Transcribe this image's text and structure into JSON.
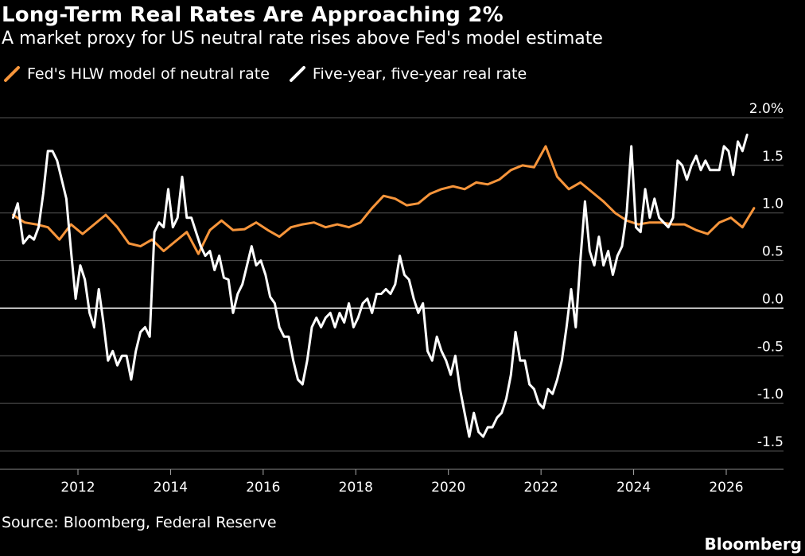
{
  "title": "Long-Term Real Rates Are Approaching 2%",
  "subtitle": "A market proxy for US neutral rate rises above Fed's model estimate",
  "source": "Source: Bloomberg, Federal Reserve",
  "brand": "Bloomberg",
  "colors": {
    "hlw": "#f7953b",
    "real_rate": "#ffffff",
    "grid": "#555555",
    "zero": "#ffffff"
  },
  "chart_data": {
    "type": "line",
    "xlabel": "",
    "ylabel": "",
    "xlim": [
      2010.6,
      2026.9
    ],
    "ylim": [
      -1.6,
      2.0
    ],
    "x_ticks": [
      {
        "value": 2012,
        "label": "2012"
      },
      {
        "value": 2014,
        "label": "2014"
      },
      {
        "value": 2016,
        "label": "2016"
      },
      {
        "value": 2018,
        "label": "2018"
      },
      {
        "value": 2020,
        "label": "2020"
      },
      {
        "value": 2022,
        "label": "2022"
      },
      {
        "value": 2024,
        "label": "2024"
      },
      {
        "value": 2026,
        "label": "2026"
      }
    ],
    "y_ticks": [
      {
        "value": 2.0,
        "label": "2.0%"
      },
      {
        "value": 1.5,
        "label": "1.5"
      },
      {
        "value": 1.0,
        "label": "1.0"
      },
      {
        "value": 0.5,
        "label": "0.5"
      },
      {
        "value": 0.0,
        "label": "0.0"
      },
      {
        "value": -0.5,
        "label": "-0.5"
      },
      {
        "value": -1.0,
        "label": "-1.0"
      },
      {
        "value": -1.5,
        "label": "-1.5"
      }
    ],
    "grid": true,
    "legend_position": "top-left",
    "series": [
      {
        "name": "Fed's HLW model of neutral rate",
        "color": "#f7953b",
        "points": [
          [
            2010.6,
            0.98
          ],
          [
            2010.85,
            0.9
          ],
          [
            2011.1,
            0.88
          ],
          [
            2011.35,
            0.85
          ],
          [
            2011.6,
            0.72
          ],
          [
            2011.85,
            0.88
          ],
          [
            2012.1,
            0.78
          ],
          [
            2012.35,
            0.88
          ],
          [
            2012.6,
            0.98
          ],
          [
            2012.85,
            0.85
          ],
          [
            2013.1,
            0.68
          ],
          [
            2013.35,
            0.65
          ],
          [
            2013.6,
            0.72
          ],
          [
            2013.85,
            0.6
          ],
          [
            2014.1,
            0.7
          ],
          [
            2014.35,
            0.8
          ],
          [
            2014.6,
            0.57
          ],
          [
            2014.85,
            0.82
          ],
          [
            2015.1,
            0.92
          ],
          [
            2015.35,
            0.82
          ],
          [
            2015.6,
            0.83
          ],
          [
            2015.85,
            0.9
          ],
          [
            2016.1,
            0.82
          ],
          [
            2016.35,
            0.75
          ],
          [
            2016.6,
            0.85
          ],
          [
            2016.85,
            0.88
          ],
          [
            2017.1,
            0.9
          ],
          [
            2017.35,
            0.85
          ],
          [
            2017.6,
            0.88
          ],
          [
            2017.85,
            0.85
          ],
          [
            2018.1,
            0.9
          ],
          [
            2018.35,
            1.05
          ],
          [
            2018.6,
            1.18
          ],
          [
            2018.85,
            1.15
          ],
          [
            2019.1,
            1.08
          ],
          [
            2019.35,
            1.1
          ],
          [
            2019.6,
            1.2
          ],
          [
            2019.85,
            1.25
          ],
          [
            2020.1,
            1.28
          ],
          [
            2020.35,
            1.25
          ],
          [
            2020.6,
            1.32
          ],
          [
            2020.85,
            1.3
          ],
          [
            2021.1,
            1.35
          ],
          [
            2021.35,
            1.45
          ],
          [
            2021.6,
            1.5
          ],
          [
            2021.85,
            1.48
          ],
          [
            2022.1,
            1.7
          ],
          [
            2022.35,
            1.38
          ],
          [
            2022.6,
            1.25
          ],
          [
            2022.85,
            1.32
          ],
          [
            2023.1,
            1.22
          ],
          [
            2023.35,
            1.12
          ],
          [
            2023.6,
            1.0
          ],
          [
            2023.85,
            0.92
          ],
          [
            2024.1,
            0.88
          ],
          [
            2024.35,
            0.9
          ],
          [
            2024.6,
            0.9
          ],
          [
            2024.85,
            0.88
          ],
          [
            2025.1,
            0.88
          ],
          [
            2025.35,
            0.82
          ],
          [
            2025.6,
            0.78
          ],
          [
            2025.85,
            0.9
          ],
          [
            2026.1,
            0.95
          ],
          [
            2026.35,
            0.85
          ],
          [
            2026.6,
            1.05
          ]
        ]
      },
      {
        "name": "Five-year, five-year real rate",
        "color": "#ffffff",
        "points": [
          [
            2010.6,
            0.95
          ],
          [
            2010.7,
            1.1
          ],
          [
            2010.82,
            0.68
          ],
          [
            2010.95,
            0.76
          ],
          [
            2011.05,
            0.72
          ],
          [
            2011.15,
            0.85
          ],
          [
            2011.25,
            1.2
          ],
          [
            2011.35,
            1.65
          ],
          [
            2011.45,
            1.65
          ],
          [
            2011.55,
            1.55
          ],
          [
            2011.65,
            1.35
          ],
          [
            2011.75,
            1.15
          ],
          [
            2011.85,
            0.6
          ],
          [
            2011.95,
            0.1
          ],
          [
            2012.05,
            0.45
          ],
          [
            2012.15,
            0.3
          ],
          [
            2012.25,
            -0.05
          ],
          [
            2012.35,
            -0.2
          ],
          [
            2012.45,
            0.2
          ],
          [
            2012.55,
            -0.15
          ],
          [
            2012.65,
            -0.55
          ],
          [
            2012.75,
            -0.45
          ],
          [
            2012.85,
            -0.6
          ],
          [
            2012.95,
            -0.5
          ],
          [
            2013.05,
            -0.5
          ],
          [
            2013.15,
            -0.75
          ],
          [
            2013.25,
            -0.45
          ],
          [
            2013.35,
            -0.25
          ],
          [
            2013.45,
            -0.2
          ],
          [
            2013.55,
            -0.3
          ],
          [
            2013.65,
            0.8
          ],
          [
            2013.75,
            0.9
          ],
          [
            2013.85,
            0.85
          ],
          [
            2013.95,
            1.25
          ],
          [
            2014.05,
            0.85
          ],
          [
            2014.15,
            0.95
          ],
          [
            2014.25,
            1.38
          ],
          [
            2014.35,
            0.95
          ],
          [
            2014.45,
            0.95
          ],
          [
            2014.55,
            0.8
          ],
          [
            2014.65,
            0.65
          ],
          [
            2014.75,
            0.55
          ],
          [
            2014.85,
            0.6
          ],
          [
            2014.95,
            0.4
          ],
          [
            2015.05,
            0.55
          ],
          [
            2015.15,
            0.32
          ],
          [
            2015.25,
            0.3
          ],
          [
            2015.35,
            -0.05
          ],
          [
            2015.45,
            0.15
          ],
          [
            2015.55,
            0.25
          ],
          [
            2015.65,
            0.45
          ],
          [
            2015.75,
            0.65
          ],
          [
            2015.85,
            0.45
          ],
          [
            2015.95,
            0.5
          ],
          [
            2016.05,
            0.35
          ],
          [
            2016.15,
            0.12
          ],
          [
            2016.25,
            0.05
          ],
          [
            2016.35,
            -0.2
          ],
          [
            2016.45,
            -0.3
          ],
          [
            2016.55,
            -0.3
          ],
          [
            2016.65,
            -0.55
          ],
          [
            2016.75,
            -0.75
          ],
          [
            2016.85,
            -0.8
          ],
          [
            2016.95,
            -0.55
          ],
          [
            2017.05,
            -0.2
          ],
          [
            2017.15,
            -0.1
          ],
          [
            2017.25,
            -0.2
          ],
          [
            2017.35,
            -0.1
          ],
          [
            2017.45,
            -0.05
          ],
          [
            2017.55,
            -0.2
          ],
          [
            2017.65,
            -0.05
          ],
          [
            2017.75,
            -0.15
          ],
          [
            2017.85,
            0.05
          ],
          [
            2017.95,
            -0.2
          ],
          [
            2018.05,
            -0.1
          ],
          [
            2018.15,
            0.05
          ],
          [
            2018.25,
            0.1
          ],
          [
            2018.35,
            -0.05
          ],
          [
            2018.45,
            0.15
          ],
          [
            2018.55,
            0.15
          ],
          [
            2018.65,
            0.2
          ],
          [
            2018.75,
            0.15
          ],
          [
            2018.85,
            0.25
          ],
          [
            2018.95,
            0.55
          ],
          [
            2019.05,
            0.35
          ],
          [
            2019.15,
            0.3
          ],
          [
            2019.25,
            0.1
          ],
          [
            2019.35,
            -0.05
          ],
          [
            2019.45,
            0.05
          ],
          [
            2019.55,
            -0.45
          ],
          [
            2019.65,
            -0.55
          ],
          [
            2019.75,
            -0.3
          ],
          [
            2019.85,
            -0.45
          ],
          [
            2019.95,
            -0.55
          ],
          [
            2020.05,
            -0.7
          ],
          [
            2020.15,
            -0.5
          ],
          [
            2020.25,
            -0.85
          ],
          [
            2020.35,
            -1.1
          ],
          [
            2020.45,
            -1.35
          ],
          [
            2020.55,
            -1.1
          ],
          [
            2020.65,
            -1.3
          ],
          [
            2020.75,
            -1.35
          ],
          [
            2020.85,
            -1.25
          ],
          [
            2020.95,
            -1.25
          ],
          [
            2021.05,
            -1.15
          ],
          [
            2021.15,
            -1.1
          ],
          [
            2021.25,
            -0.95
          ],
          [
            2021.35,
            -0.7
          ],
          [
            2021.45,
            -0.25
          ],
          [
            2021.55,
            -0.55
          ],
          [
            2021.65,
            -0.55
          ],
          [
            2021.75,
            -0.8
          ],
          [
            2021.85,
            -0.85
          ],
          [
            2021.95,
            -1.0
          ],
          [
            2022.05,
            -1.05
          ],
          [
            2022.15,
            -0.85
          ],
          [
            2022.25,
            -0.9
          ],
          [
            2022.35,
            -0.75
          ],
          [
            2022.45,
            -0.55
          ],
          [
            2022.55,
            -0.2
          ],
          [
            2022.65,
            0.2
          ],
          [
            2022.75,
            -0.2
          ],
          [
            2022.85,
            0.5
          ],
          [
            2022.95,
            1.12
          ],
          [
            2023.05,
            0.6
          ],
          [
            2023.15,
            0.45
          ],
          [
            2023.25,
            0.75
          ],
          [
            2023.35,
            0.45
          ],
          [
            2023.45,
            0.6
          ],
          [
            2023.55,
            0.35
          ],
          [
            2023.65,
            0.55
          ],
          [
            2023.75,
            0.65
          ],
          [
            2023.85,
            1.0
          ],
          [
            2023.95,
            1.7
          ],
          [
            2024.05,
            0.85
          ],
          [
            2024.15,
            0.8
          ],
          [
            2024.25,
            1.25
          ],
          [
            2024.35,
            0.95
          ],
          [
            2024.45,
            1.15
          ],
          [
            2024.55,
            0.95
          ],
          [
            2024.65,
            0.9
          ],
          [
            2024.75,
            0.85
          ],
          [
            2024.85,
            0.95
          ],
          [
            2024.95,
            1.55
          ],
          [
            2025.05,
            1.5
          ],
          [
            2025.15,
            1.35
          ],
          [
            2025.25,
            1.5
          ],
          [
            2025.35,
            1.6
          ],
          [
            2025.45,
            1.45
          ],
          [
            2025.55,
            1.55
          ],
          [
            2025.65,
            1.45
          ],
          [
            2025.75,
            1.45
          ],
          [
            2025.85,
            1.45
          ],
          [
            2025.95,
            1.7
          ],
          [
            2026.05,
            1.65
          ],
          [
            2026.15,
            1.4
          ],
          [
            2026.25,
            1.75
          ],
          [
            2026.35,
            1.65
          ],
          [
            2026.45,
            1.82
          ]
        ]
      }
    ]
  }
}
